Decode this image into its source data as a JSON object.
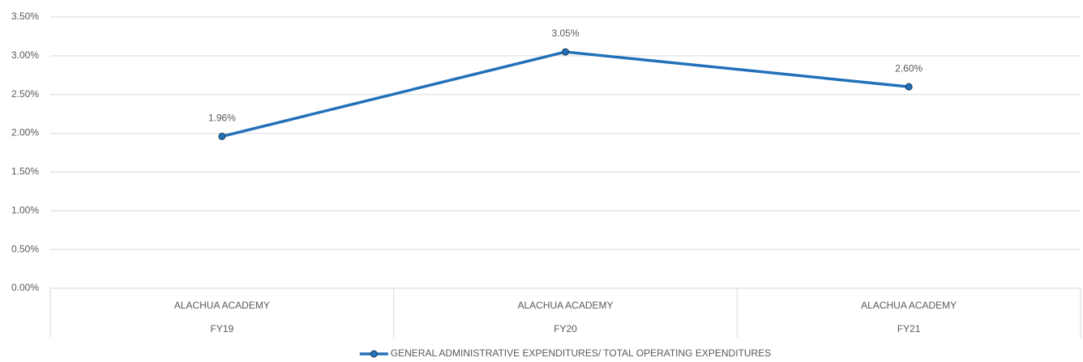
{
  "chart_data": {
    "type": "line",
    "categories": [
      [
        "ALACHUA ACADEMY",
        "FY19"
      ],
      [
        "ALACHUA ACADEMY",
        "FY20"
      ],
      [
        "ALACHUA ACADEMY",
        "FY21"
      ]
    ],
    "series": [
      {
        "name": "GENERAL ADMINISTRATIVE EXPENDITURES/ TOTAL OPERATING EXPENDITURES",
        "color": "#2271b8",
        "values": [
          1.96,
          3.05,
          2.6
        ],
        "value_labels": [
          "1.96%",
          "3.05%",
          "2.60%"
        ]
      }
    ],
    "ylim": [
      0,
      3.5
    ],
    "yticks": [
      {
        "value": 0,
        "label": "0.00%"
      },
      {
        "value": 0.5,
        "label": "0.50%"
      },
      {
        "value": 1,
        "label": "1.00%"
      },
      {
        "value": 1.5,
        "label": "1.50%"
      },
      {
        "value": 2,
        "label": "2.00%"
      },
      {
        "value": 2.5,
        "label": "2.50%"
      },
      {
        "value": 3,
        "label": "3.00%"
      },
      {
        "value": 3.5,
        "label": "3.50%"
      }
    ],
    "grid": true,
    "legend": "bottom"
  }
}
